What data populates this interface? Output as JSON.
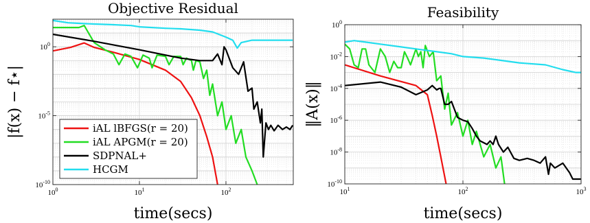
{
  "chart_data": [
    {
      "type": "line",
      "title": "Objective Residual",
      "xlabel": "time(secs)",
      "ylabel": "|f(x) − f⋆|",
      "xscale": "log",
      "yscale": "log",
      "xlim": [
        1,
        600
      ],
      "ylim": [
        1e-10,
        100.0
      ],
      "xticks": [
        {
          "v": 1,
          "label": "10^0"
        },
        {
          "v": 10,
          "label": "10^1"
        },
        {
          "v": 100,
          "label": "10^2"
        }
      ],
      "yticks": [
        {
          "v": 1,
          "label": "10^0"
        },
        {
          "v": 1e-05,
          "label": "10^-5"
        },
        {
          "v": 1e-10,
          "label": "10^-10"
        }
      ],
      "grid": true,
      "legend_position": "bottom-left",
      "legend": [
        "iAL lBFGS(r = 20)",
        "iAL APGM(r = 20)",
        "SDPNAL+",
        "HCGM"
      ],
      "series": [
        {
          "name": "iAL lBFGS(r = 20)",
          "color": "#ee1111",
          "points": [
            [
              1,
              0.5
            ],
            [
              1.6,
              0.9
            ],
            [
              2.3,
              1.9
            ],
            [
              3,
              0.9
            ],
            [
              5,
              0.4
            ],
            [
              10,
              0.12
            ],
            [
              20,
              0.02
            ],
            [
              30,
              0.003
            ],
            [
              40,
              0.0002
            ],
            [
              50,
              1e-05
            ],
            [
              60,
              3e-07
            ],
            [
              70,
              1e-08
            ],
            [
              80,
              1e-10
            ]
          ]
        },
        {
          "name": "iAL APGM(r = 20)",
          "color": "#22dd22",
          "points": [
            [
              1,
              25
            ],
            [
              2,
              25
            ],
            [
              2.3,
              35
            ],
            [
              3,
              2
            ],
            [
              4,
              0.6
            ],
            [
              5,
              0.3
            ],
            [
              5.8,
              0.05
            ],
            [
              6.8,
              0.3
            ],
            [
              8,
              0.2
            ],
            [
              9.5,
              0.03
            ],
            [
              11,
              0.25
            ],
            [
              13,
              0.15
            ],
            [
              14,
              0.03
            ],
            [
              16,
              0.25
            ],
            [
              20,
              0.2
            ],
            [
              22,
              0.05
            ],
            [
              25,
              0.2
            ],
            [
              30,
              0.2
            ],
            [
              32,
              0.05
            ],
            [
              35,
              0.15
            ],
            [
              40,
              0.1
            ],
            [
              42,
              0.02
            ],
            [
              45,
              0.1
            ],
            [
              50,
              0.08
            ],
            [
              55,
              0.005
            ],
            [
              60,
              0.02
            ],
            [
              65,
              0.0003
            ],
            [
              70,
              0.002
            ],
            [
              80,
              1e-05
            ],
            [
              90,
              0.0001
            ],
            [
              100,
              1e-06
            ],
            [
              115,
              1e-05
            ],
            [
              130,
              1e-07
            ],
            [
              150,
              1e-06
            ],
            [
              170,
              1e-08
            ],
            [
              200,
              1e-09
            ],
            [
              230,
              1e-10
            ]
          ]
        },
        {
          "name": "SDPNAL+",
          "color": "#000000",
          "points": [
            [
              1,
              8
            ],
            [
              3,
              2.5
            ],
            [
              10,
              0.6
            ],
            [
              30,
              0.15
            ],
            [
              50,
              0.1
            ],
            [
              70,
              0.1
            ],
            [
              80,
              0.3
            ],
            [
              90,
              0.05
            ],
            [
              95,
              1
            ],
            [
              100,
              0.6
            ],
            [
              120,
              0.03
            ],
            [
              140,
              0.01
            ],
            [
              160,
              0.08
            ],
            [
              180,
              0.0006
            ],
            [
              200,
              0.001
            ],
            [
              210,
              3e-05
            ],
            [
              230,
              0.0001
            ],
            [
              250,
              3e-06
            ],
            [
              260,
              3e-05
            ],
            [
              270,
              1e-08
            ],
            [
              290,
              3e-06
            ],
            [
              310,
              1e-06
            ],
            [
              330,
              2e-06
            ],
            [
              360,
              8e-07
            ],
            [
              400,
              2e-06
            ],
            [
              450,
              1e-06
            ],
            [
              500,
              1.5e-06
            ],
            [
              550,
              1e-06
            ],
            [
              590,
              2e-06
            ]
          ]
        },
        {
          "name": "HCGM",
          "color": "#22ddee",
          "points": [
            [
              1,
              80
            ],
            [
              1.5,
              55
            ],
            [
              2,
              50
            ],
            [
              3,
              45
            ],
            [
              5,
              40
            ],
            [
              8,
              35
            ],
            [
              10,
              28
            ],
            [
              20,
              22
            ],
            [
              30,
              20
            ],
            [
              50,
              16
            ],
            [
              70,
              12
            ],
            [
              100,
              5
            ],
            [
              120,
              3
            ],
            [
              135,
              0.8
            ],
            [
              150,
              2
            ],
            [
              200,
              3
            ],
            [
              300,
              3
            ],
            [
              450,
              3
            ],
            [
              590,
              3
            ]
          ]
        }
      ]
    },
    {
      "type": "line",
      "title": "Feasibility",
      "xlabel": "time(secs)",
      "ylabel": "‖A(x)‖",
      "xscale": "log",
      "yscale": "log",
      "xlim": [
        10,
        1000
      ],
      "ylim": [
        1e-10,
        1
      ],
      "xticks": [
        {
          "v": 10,
          "label": "10^1"
        },
        {
          "v": 100,
          "label": "10^2"
        },
        {
          "v": 1000,
          "label": "10^3"
        }
      ],
      "yticks": [
        {
          "v": 1,
          "label": "10^0"
        },
        {
          "v": 0.01,
          "label": "10^-2"
        },
        {
          "v": 0.0001,
          "label": "10^-4"
        },
        {
          "v": 1e-06,
          "label": "10^-6"
        },
        {
          "v": 1e-08,
          "label": "10^-8"
        },
        {
          "v": 1e-10,
          "label": "10^-10"
        }
      ],
      "grid": true,
      "series": [
        {
          "name": "iAL lBFGS(r = 20)",
          "color": "#ee1111",
          "points": [
            [
              10,
              0.003
            ],
            [
              20,
              0.0006
            ],
            [
              40,
              0.00015
            ],
            [
              50,
              4e-05
            ],
            [
              55,
              2e-06
            ],
            [
              60,
              1e-07
            ],
            [
              65,
              5e-09
            ],
            [
              72,
              1e-10
            ]
          ]
        },
        {
          "name": "iAL APGM(r = 20)",
          "color": "#22dd22",
          "points": [
            [
              10,
              0.06
            ],
            [
              11,
              0.03
            ],
            [
              12,
              0.003
            ],
            [
              13,
              0.002
            ],
            [
              14,
              0.03
            ],
            [
              15,
              0.03
            ],
            [
              16,
              0.003
            ],
            [
              18,
              0.001
            ],
            [
              20,
              0.03
            ],
            [
              22,
              0.01
            ],
            [
              24,
              0.001
            ],
            [
              26,
              0.005
            ],
            [
              28,
              0.002
            ],
            [
              30,
              0.002
            ],
            [
              32,
              0.02
            ],
            [
              34,
              0.008
            ],
            [
              36,
              0.003
            ],
            [
              40,
              0.03
            ],
            [
              42,
              0.01
            ],
            [
              44,
              0.02
            ],
            [
              46,
              0.002
            ],
            [
              48,
              0.05
            ],
            [
              52,
              0.01
            ],
            [
              56,
              0.02
            ],
            [
              60,
              0.0003
            ],
            [
              65,
              0.0006
            ],
            [
              70,
              5e-06
            ],
            [
              75,
              5e-05
            ],
            [
              80,
              5e-07
            ],
            [
              90,
              3e-06
            ],
            [
              100,
              1e-07
            ],
            [
              110,
              1e-06
            ],
            [
              120,
              3e-08
            ],
            [
              130,
              2e-07
            ],
            [
              150,
              5e-09
            ],
            [
              170,
              3e-08
            ],
            [
              190,
              1e-09
            ],
            [
              210,
              5e-09
            ],
            [
              225,
              1e-10
            ]
          ]
        },
        {
          "name": "SDPNAL+",
          "color": "#000000",
          "points": [
            [
              10,
              0.00015
            ],
            [
              20,
              0.00025
            ],
            [
              30,
              0.00012
            ],
            [
              40,
              4e-05
            ],
            [
              50,
              8e-05
            ],
            [
              55,
              0.00015
            ],
            [
              60,
              8e-05
            ],
            [
              63,
              0.0001
            ],
            [
              65,
              0.0001
            ],
            [
              70,
              1e-05
            ],
            [
              75,
              1e-05
            ],
            [
              80,
              1.5e-05
            ],
            [
              90,
              1.5e-06
            ],
            [
              100,
              1e-06
            ],
            [
              110,
              8e-07
            ],
            [
              120,
              3e-07
            ],
            [
              130,
              1e-07
            ],
            [
              140,
              5e-08
            ],
            [
              160,
              3e-08
            ],
            [
              170,
              5e-08
            ],
            [
              180,
              3e-08
            ],
            [
              190,
              1e-07
            ],
            [
              200,
              3e-08
            ],
            [
              220,
              1e-08
            ],
            [
              240,
              2e-08
            ],
            [
              270,
              4e-09
            ],
            [
              300,
              3e-09
            ],
            [
              350,
              4e-09
            ],
            [
              400,
              3e-09
            ],
            [
              450,
              2e-09
            ],
            [
              500,
              5e-09
            ],
            [
              530,
              4e-10
            ],
            [
              550,
              2e-09
            ],
            [
              600,
              1e-09
            ],
            [
              700,
              2e-09
            ],
            [
              800,
              5e-10
            ],
            [
              850,
              2e-10
            ],
            [
              1000,
              2e-10
            ]
          ]
        },
        {
          "name": "HCGM",
          "color": "#22ddee",
          "points": [
            [
              10,
              0.08
            ],
            [
              12,
              0.1
            ],
            [
              15,
              0.08
            ],
            [
              20,
              0.06
            ],
            [
              30,
              0.04
            ],
            [
              40,
              0.03
            ],
            [
              60,
              0.02
            ],
            [
              80,
              0.015
            ],
            [
              100,
              0.01
            ],
            [
              150,
              0.008
            ],
            [
              200,
              0.006
            ],
            [
              300,
              0.004
            ],
            [
              500,
              0.003
            ],
            [
              700,
              0.0015
            ],
            [
              900,
              0.001
            ],
            [
              1000,
              0.001
            ]
          ]
        }
      ]
    }
  ]
}
